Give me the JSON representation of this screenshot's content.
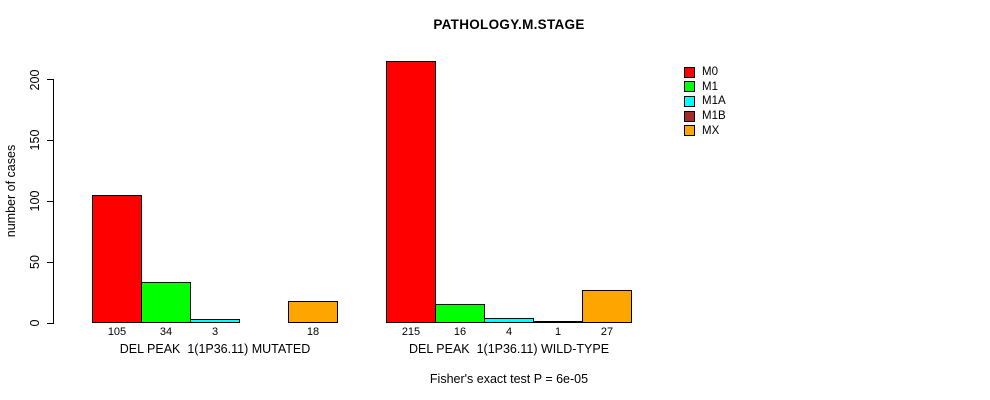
{
  "chart_data": {
    "type": "bar",
    "title": "PATHOLOGY.M.STAGE",
    "ylabel": "number of cases",
    "xlabel": "",
    "footer": "Fisher's exact test P = 6e-05",
    "yticks": [
      0,
      50,
      100,
      150,
      200
    ],
    "axis_range": [
      0,
      200
    ],
    "grid": false,
    "legend_position": "right",
    "categories": [
      "M0",
      "M1",
      "M1A",
      "M1B",
      "MX"
    ],
    "legend": [
      {
        "label": "M0",
        "color": "#FF0000"
      },
      {
        "label": "M1",
        "color": "#00FF00"
      },
      {
        "label": "M1A",
        "color": "#00FFFF"
      },
      {
        "label": "M1B",
        "color": "#A52A2A"
      },
      {
        "label": "MX",
        "color": "#FFA500"
      }
    ],
    "groups": [
      {
        "label": "DEL PEAK  1(1P36.11) MUTATED",
        "values": [
          105,
          34,
          3,
          0,
          18
        ],
        "value_labels": [
          "105",
          "34",
          "3",
          "",
          "18"
        ]
      },
      {
        "label": "DEL PEAK  1(1P36.11) WILD-TYPE",
        "values": [
          215,
          16,
          4,
          1,
          27
        ],
        "value_labels": [
          "215",
          "16",
          "4",
          "1",
          "27"
        ]
      }
    ]
  }
}
